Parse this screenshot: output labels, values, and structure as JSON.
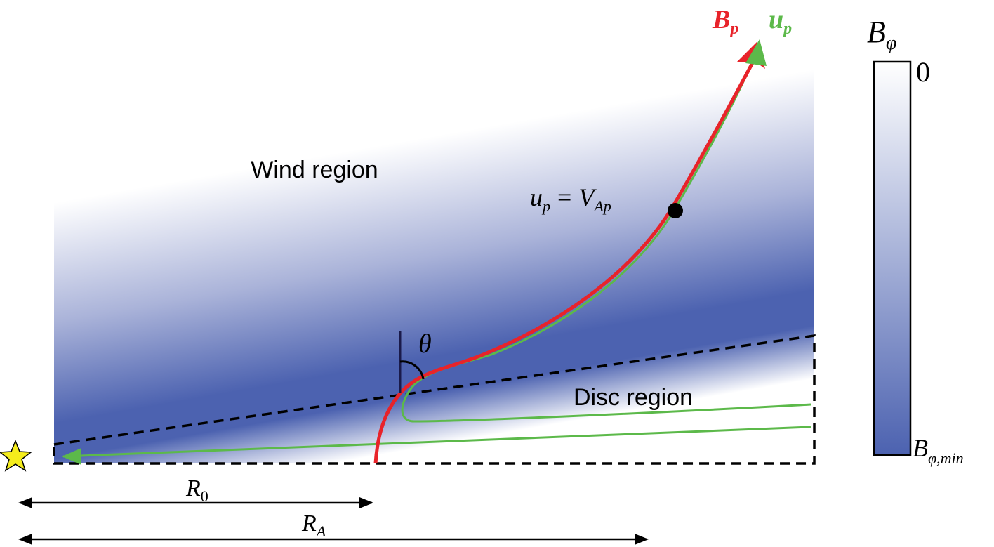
{
  "colorbar": {
    "title": {
      "base": "B",
      "sub": "φ"
    },
    "top_label": "0",
    "bottom_label": {
      "base": "B",
      "sub": "φ,min"
    }
  },
  "legend": {
    "field": {
      "base": "B",
      "sub": "p"
    },
    "velocity": {
      "base": "u",
      "sub": "p"
    }
  },
  "regions": {
    "wind": "Wind region",
    "disc": "Disc region"
  },
  "annotations": {
    "alfven": {
      "lhs": "u",
      "lhs_sub": "p",
      "eq": "=",
      "rhs": "V",
      "rhs_sub": "Ap"
    },
    "angle": "θ",
    "r0": {
      "base": "R",
      "sub": "0"
    },
    "ra": {
      "base": "R",
      "sub": "A"
    }
  }
}
